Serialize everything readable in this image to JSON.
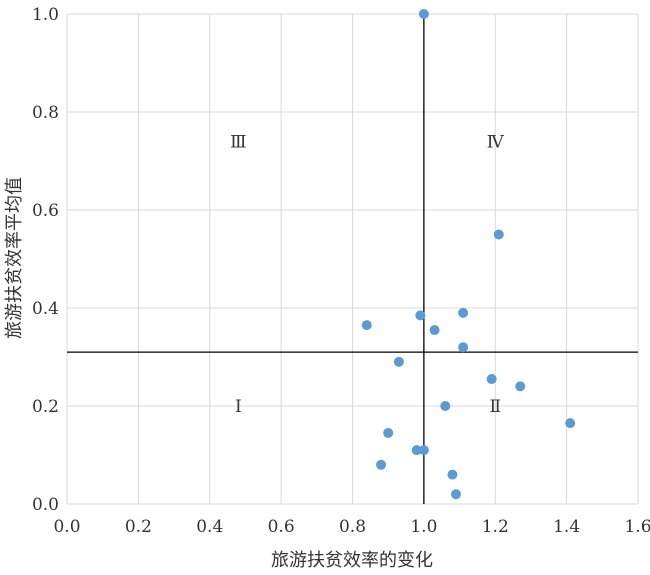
{
  "chart_data": {
    "type": "scatter",
    "xlabel": "旅游扶贫效率的变化",
    "ylabel": "旅游扶贫效率平均值",
    "xlim": [
      0.0,
      1.6
    ],
    "ylim": [
      0.0,
      1.0
    ],
    "x_ticks": [
      "0.0",
      "0.2",
      "0.4",
      "0.6",
      "0.8",
      "1.0",
      "1.2",
      "1.4",
      "1.6"
    ],
    "y_ticks": [
      "0.0",
      "0.2",
      "0.4",
      "0.6",
      "0.8",
      "1.0"
    ],
    "grid": true,
    "point_color": "#5b9bd5",
    "reference_lines": {
      "x": 1.0,
      "y": 0.31
    },
    "quadrant_labels": [
      {
        "text": "Ⅲ",
        "x": 0.48,
        "y": 0.74
      },
      {
        "text": "Ⅳ",
        "x": 1.2,
        "y": 0.74
      },
      {
        "text": "Ⅰ",
        "x": 0.48,
        "y": 0.2
      },
      {
        "text": "Ⅱ",
        "x": 1.2,
        "y": 0.2
      }
    ],
    "points": [
      {
        "x": 1.0,
        "y": 1.0
      },
      {
        "x": 1.21,
        "y": 0.55
      },
      {
        "x": 0.84,
        "y": 0.365
      },
      {
        "x": 0.99,
        "y": 0.385
      },
      {
        "x": 1.03,
        "y": 0.355
      },
      {
        "x": 1.11,
        "y": 0.39
      },
      {
        "x": 1.11,
        "y": 0.32
      },
      {
        "x": 0.93,
        "y": 0.29
      },
      {
        "x": 1.19,
        "y": 0.255
      },
      {
        "x": 1.27,
        "y": 0.24
      },
      {
        "x": 1.06,
        "y": 0.2
      },
      {
        "x": 1.41,
        "y": 0.165
      },
      {
        "x": 0.9,
        "y": 0.145
      },
      {
        "x": 0.98,
        "y": 0.11
      },
      {
        "x": 1.0,
        "y": 0.11
      },
      {
        "x": 0.88,
        "y": 0.08
      },
      {
        "x": 1.08,
        "y": 0.06
      },
      {
        "x": 1.09,
        "y": 0.02
      }
    ]
  }
}
